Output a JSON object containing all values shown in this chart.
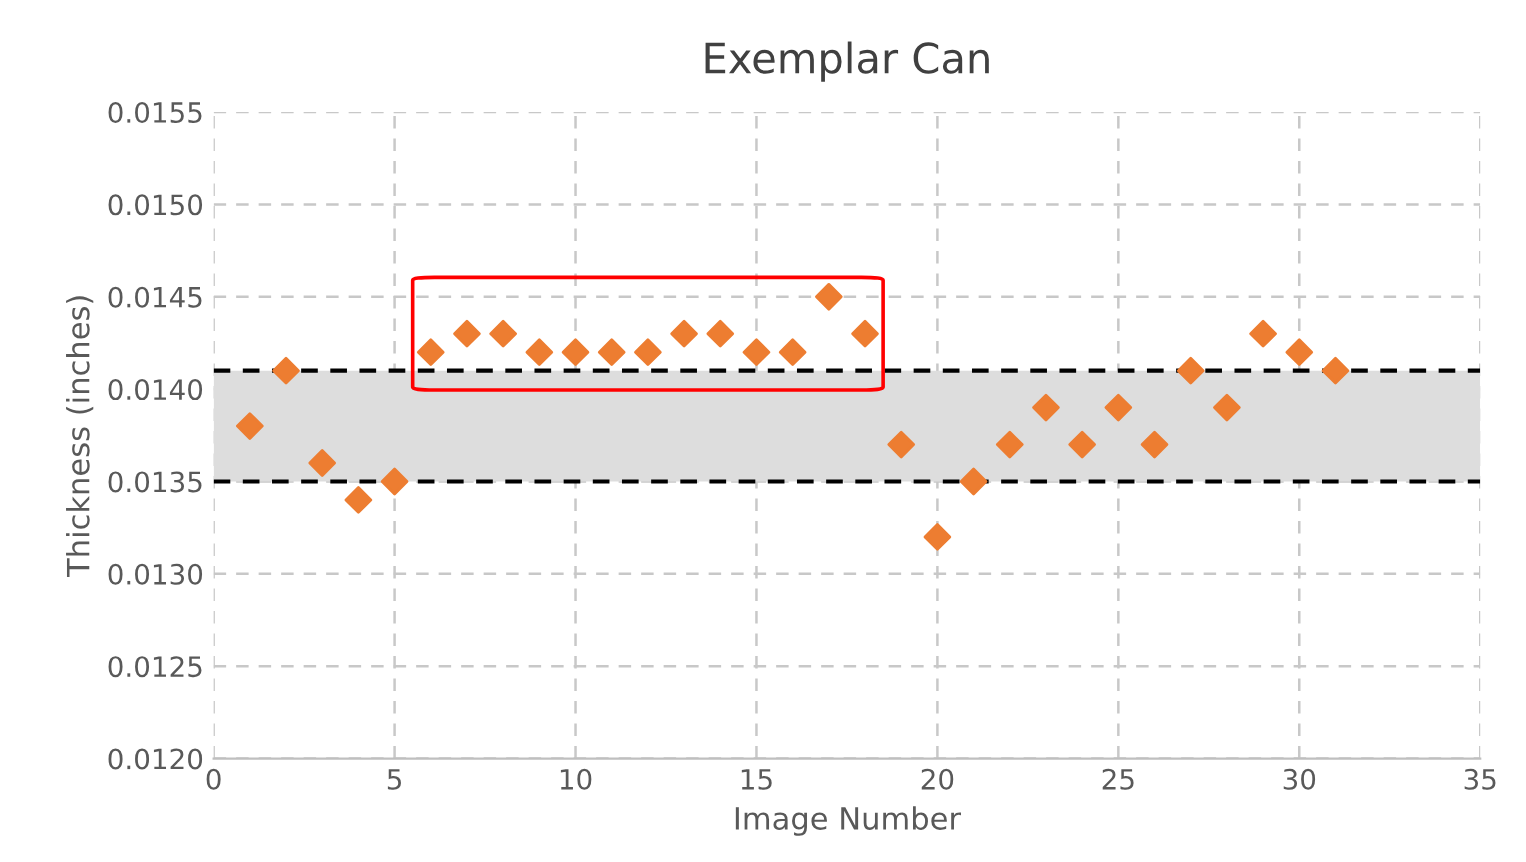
{
  "chart_data": {
    "type": "scatter",
    "title": "Exemplar Can",
    "xlabel": "Image Number",
    "ylabel": "Thickness (inches)",
    "x": [
      1,
      2,
      3,
      4,
      5,
      6,
      7,
      8,
      9,
      10,
      11,
      12,
      13,
      14,
      15,
      16,
      17,
      18,
      19,
      20,
      21,
      22,
      23,
      24,
      25,
      26,
      27,
      28,
      29,
      30,
      31
    ],
    "series": [
      {
        "color": "#ed7d31",
        "values": [
          0.0138,
          0.0141,
          0.0136,
          0.0134,
          0.0135,
          0.0142,
          0.0143,
          0.0143,
          0.0142,
          0.0142,
          0.0142,
          0.0142,
          0.0143,
          0.0143,
          0.0142,
          0.0142,
          0.0145,
          0.0143,
          0.0137,
          0.0132,
          0.0135,
          0.0137,
          0.0139,
          0.0137,
          0.0139,
          0.0137,
          0.0141,
          0.0139,
          0.0143,
          0.0142,
          0.0141
        ]
      }
    ],
    "marker": "diamond",
    "xlim": [
      0,
      35
    ],
    "xticks": [
      0,
      5,
      10,
      15,
      20,
      25,
      30,
      35
    ],
    "ylim": [
      0.012,
      0.0155
    ],
    "yticks": [
      {
        "value": 0.012,
        "label": "0.0120"
      },
      {
        "value": 0.0125,
        "label": "0.0125"
      },
      {
        "value": 0.013,
        "label": "0.0130"
      },
      {
        "value": 0.0135,
        "label": "0.0135"
      },
      {
        "value": 0.014,
        "label": "0.0140"
      },
      {
        "value": 0.0145,
        "label": "0.0145"
      },
      {
        "value": 0.015,
        "label": "0.0150"
      },
      {
        "value": 0.0155,
        "label": "0.0155"
      }
    ],
    "bands": [
      {
        "axis": "y",
        "from": 0.0135,
        "to": 0.0141,
        "color": "#dddddd"
      }
    ],
    "ref_lines": [
      {
        "axis": "y",
        "value": 0.0135,
        "color": "#000000",
        "line_style": "dashed"
      },
      {
        "axis": "y",
        "value": 0.0141,
        "color": "#000000",
        "line_style": "dashed"
      }
    ],
    "grid": true,
    "legend": false
  }
}
